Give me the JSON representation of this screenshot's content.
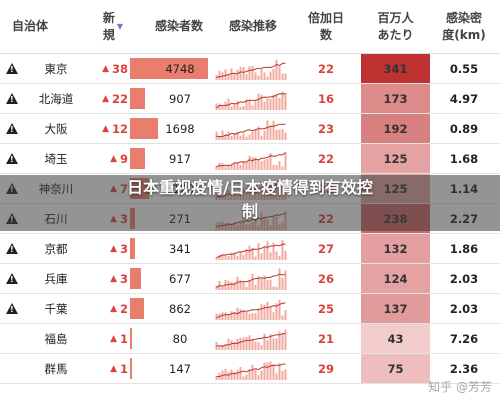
{
  "headers": {
    "prefecture": "自治体",
    "new_cases": "新\n規",
    "cases": "感染者数",
    "trend": "感染推移",
    "doubling_days": "倍加日\n数",
    "per_million": "百万人\nあたり",
    "density": "感染密\n度(km)"
  },
  "colors": {
    "red_text": "#d9433b",
    "case_bar": "#ea7e6e",
    "sort_icon": "#6b7bd6"
  },
  "rows": [
    {
      "warn": true,
      "prefecture": "東京",
      "new_cases": "38",
      "cases": "4748",
      "case_fraction": 1.0,
      "doubling_days": "22",
      "per_million": "341",
      "density": "0.55",
      "heat": 1.0
    },
    {
      "warn": true,
      "prefecture": "北海道",
      "new_cases": "22",
      "cases": "907",
      "case_fraction": 0.19,
      "doubling_days": "16",
      "per_million": "173",
      "density": "4.97",
      "heat": 0.5
    },
    {
      "warn": true,
      "prefecture": "大阪",
      "new_cases": "12",
      "cases": "1698",
      "case_fraction": 0.36,
      "doubling_days": "23",
      "per_million": "192",
      "density": "0.89",
      "heat": 0.56
    },
    {
      "warn": true,
      "prefecture": "埼玉",
      "new_cases": "9",
      "cases": "917",
      "case_fraction": 0.19,
      "doubling_days": "22",
      "per_million": "125",
      "density": "1.68",
      "heat": 0.36
    },
    {
      "warn": true,
      "prefecture": "神奈川",
      "new_cases": "7",
      "cases": "1120",
      "case_fraction": 0.24,
      "doubling_days": "22",
      "per_million": "125",
      "density": "1.14",
      "heat": 0.36
    },
    {
      "warn": true,
      "prefecture": "石川",
      "new_cases": "3",
      "cases": "271",
      "case_fraction": 0.06,
      "doubling_days": "22",
      "per_million": "238",
      "density": "2.27",
      "heat": 0.7
    },
    {
      "warn": true,
      "prefecture": "京都",
      "new_cases": "3",
      "cases": "341",
      "case_fraction": 0.07,
      "doubling_days": "27",
      "per_million": "132",
      "density": "1.86",
      "heat": 0.38
    },
    {
      "warn": true,
      "prefecture": "兵庫",
      "new_cases": "3",
      "cases": "677",
      "case_fraction": 0.14,
      "doubling_days": "26",
      "per_million": "124",
      "density": "2.03",
      "heat": 0.36
    },
    {
      "warn": true,
      "prefecture": "千葉",
      "new_cases": "2",
      "cases": "862",
      "case_fraction": 0.18,
      "doubling_days": "25",
      "per_million": "137",
      "density": "2.03",
      "heat": 0.4
    },
    {
      "warn": false,
      "prefecture": "福島",
      "new_cases": "1",
      "cases": "80",
      "case_fraction": 0.017,
      "doubling_days": "21",
      "per_million": "43",
      "density": "7.26",
      "heat": 0.12
    },
    {
      "warn": false,
      "prefecture": "群馬",
      "new_cases": "1",
      "cases": "147",
      "case_fraction": 0.03,
      "doubling_days": "29",
      "per_million": "75",
      "density": "2.36",
      "heat": 0.2
    }
  ],
  "overlay_title": "日本重视疫情/日本疫情得到有效控\n制",
  "watermark": "知乎 @芳芳"
}
